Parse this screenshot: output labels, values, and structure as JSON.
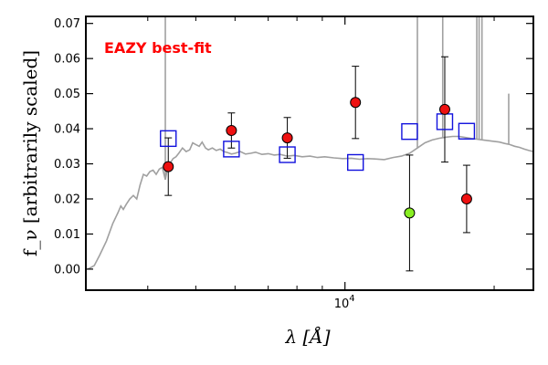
{
  "chart_data": {
    "type": "scatter",
    "title": "",
    "annotation": "EAZY best-fit",
    "annotation_color": "#ff0000",
    "xlabel": "λ [Å]",
    "ylabel": "f_ν [arbitrarily scaled]",
    "xscale": "log",
    "xlim": [
      3000,
      24000
    ],
    "ylim": [
      -0.006,
      0.072
    ],
    "yticks": [
      0.0,
      0.01,
      0.02,
      0.03,
      0.04,
      0.05,
      0.06,
      0.07
    ],
    "ytick_labels": [
      "0.00",
      "0.01",
      "0.02",
      "0.03",
      "0.04",
      "0.05",
      "0.06",
      "0.07"
    ],
    "xtick_major": [
      10000
    ],
    "xtick_major_labels": [
      "10",
      "4"
    ],
    "xtick_minor": [
      4000,
      5000,
      6000,
      7000,
      8000,
      9000,
      20000
    ],
    "grid": false,
    "colors": {
      "observed": "#ee1111",
      "highlight": "#88ee22",
      "model": "#1111dd",
      "template": "#a0a0a0"
    },
    "series": [
      {
        "marker": "circle",
        "points": [
          {
            "x": 4400,
            "y": 0.0292,
            "err": 0.0082
          },
          {
            "x": 5900,
            "y": 0.0395,
            "err": 0.005
          },
          {
            "x": 7650,
            "y": 0.0374,
            "err": 0.0058
          },
          {
            "x": 10500,
            "y": 0.0475,
            "err": 0.0103
          },
          {
            "x": 15900,
            "y": 0.0455,
            "err": 0.015
          },
          {
            "x": 17600,
            "y": 0.02,
            "err": 0.0096
          }
        ]
      },
      {
        "marker": "circle",
        "points": [
          {
            "x": 13500,
            "y": 0.016,
            "err": 0.0165
          }
        ]
      },
      {
        "marker": "square",
        "points": [
          {
            "x": 4400,
            "y": 0.0372
          },
          {
            "x": 5900,
            "y": 0.0342
          },
          {
            "x": 7650,
            "y": 0.0326
          },
          {
            "x": 10500,
            "y": 0.0304
          },
          {
            "x": 13500,
            "y": 0.0392
          },
          {
            "x": 15900,
            "y": 0.042
          },
          {
            "x": 17600,
            "y": 0.0393
          }
        ]
      }
    ],
    "template_curve": [
      [
        3030,
        0.0
      ],
      [
        3120,
        0.001
      ],
      [
        3200,
        0.004
      ],
      [
        3300,
        0.008
      ],
      [
        3400,
        0.013
      ],
      [
        3480,
        0.016
      ],
      [
        3530,
        0.018
      ],
      [
        3570,
        0.017
      ],
      [
        3620,
        0.0185
      ],
      [
        3680,
        0.02
      ],
      [
        3740,
        0.021
      ],
      [
        3800,
        0.02
      ],
      [
        3860,
        0.024
      ],
      [
        3920,
        0.027
      ],
      [
        3980,
        0.0265
      ],
      [
        4040,
        0.0278
      ],
      [
        4100,
        0.0282
      ],
      [
        4160,
        0.027
      ],
      [
        4220,
        0.0285
      ],
      [
        4280,
        0.029
      ],
      [
        4340,
        0.0255
      ],
      [
        4380,
        0.0285
      ],
      [
        4430,
        0.03
      ],
      [
        4500,
        0.0315
      ],
      [
        4560,
        0.032
      ],
      [
        4620,
        0.033
      ],
      [
        4700,
        0.0345
      ],
      [
        4780,
        0.0335
      ],
      [
        4860,
        0.034
      ],
      [
        4930,
        0.036
      ],
      [
        5000,
        0.0355
      ],
      [
        5080,
        0.035
      ],
      [
        5150,
        0.0362
      ],
      [
        5230,
        0.0345
      ],
      [
        5300,
        0.034
      ],
      [
        5400,
        0.0345
      ],
      [
        5500,
        0.0338
      ],
      [
        5600,
        0.0342
      ],
      [
        5700,
        0.0335
      ],
      [
        5800,
        0.0332
      ],
      [
        5900,
        0.0328
      ],
      [
        6000,
        0.033
      ],
      [
        6150,
        0.0335
      ],
      [
        6300,
        0.0328
      ],
      [
        6450,
        0.033
      ],
      [
        6600,
        0.0333
      ],
      [
        6800,
        0.0327
      ],
      [
        7000,
        0.0329
      ],
      [
        7200,
        0.0325
      ],
      [
        7400,
        0.0327
      ],
      [
        7650,
        0.0322
      ],
      [
        7900,
        0.0324
      ],
      [
        8200,
        0.032
      ],
      [
        8500,
        0.0322
      ],
      [
        8800,
        0.0318
      ],
      [
        9100,
        0.032
      ],
      [
        9500,
        0.0317
      ],
      [
        9900,
        0.0315
      ],
      [
        10300,
        0.0316
      ],
      [
        10700,
        0.0313
      ],
      [
        11100,
        0.0315
      ],
      [
        11500,
        0.0314
      ],
      [
        12000,
        0.0312
      ],
      [
        12500,
        0.0318
      ],
      [
        13000,
        0.0322
      ],
      [
        13500,
        0.033
      ],
      [
        14000,
        0.0345
      ],
      [
        14500,
        0.036
      ],
      [
        15000,
        0.0368
      ],
      [
        15500,
        0.0373
      ],
      [
        16000,
        0.0376
      ],
      [
        16500,
        0.0378
      ],
      [
        17000,
        0.0378
      ],
      [
        17500,
        0.0375
      ],
      [
        18000,
        0.0372
      ],
      [
        18500,
        0.037
      ],
      [
        19000,
        0.0368
      ],
      [
        19500,
        0.0366
      ],
      [
        20000,
        0.0364
      ],
      [
        20500,
        0.0362
      ],
      [
        21000,
        0.0358
      ],
      [
        21500,
        0.0355
      ],
      [
        22000,
        0.035
      ],
      [
        22500,
        0.0347
      ],
      [
        23000,
        0.0342
      ],
      [
        23500,
        0.0338
      ],
      [
        24000,
        0.0335
      ]
    ],
    "emission_lines": [
      {
        "x": 4340,
        "y_top": 0.072
      },
      {
        "x": 14000,
        "y_top": 0.072
      },
      {
        "x": 15750,
        "y_top": 0.072
      },
      {
        "x": 18450,
        "y_top": 0.072
      },
      {
        "x": 18650,
        "y_top": 0.072
      },
      {
        "x": 18900,
        "y_top": 0.072
      },
      {
        "x": 21400,
        "y_top": 0.05
      }
    ]
  }
}
